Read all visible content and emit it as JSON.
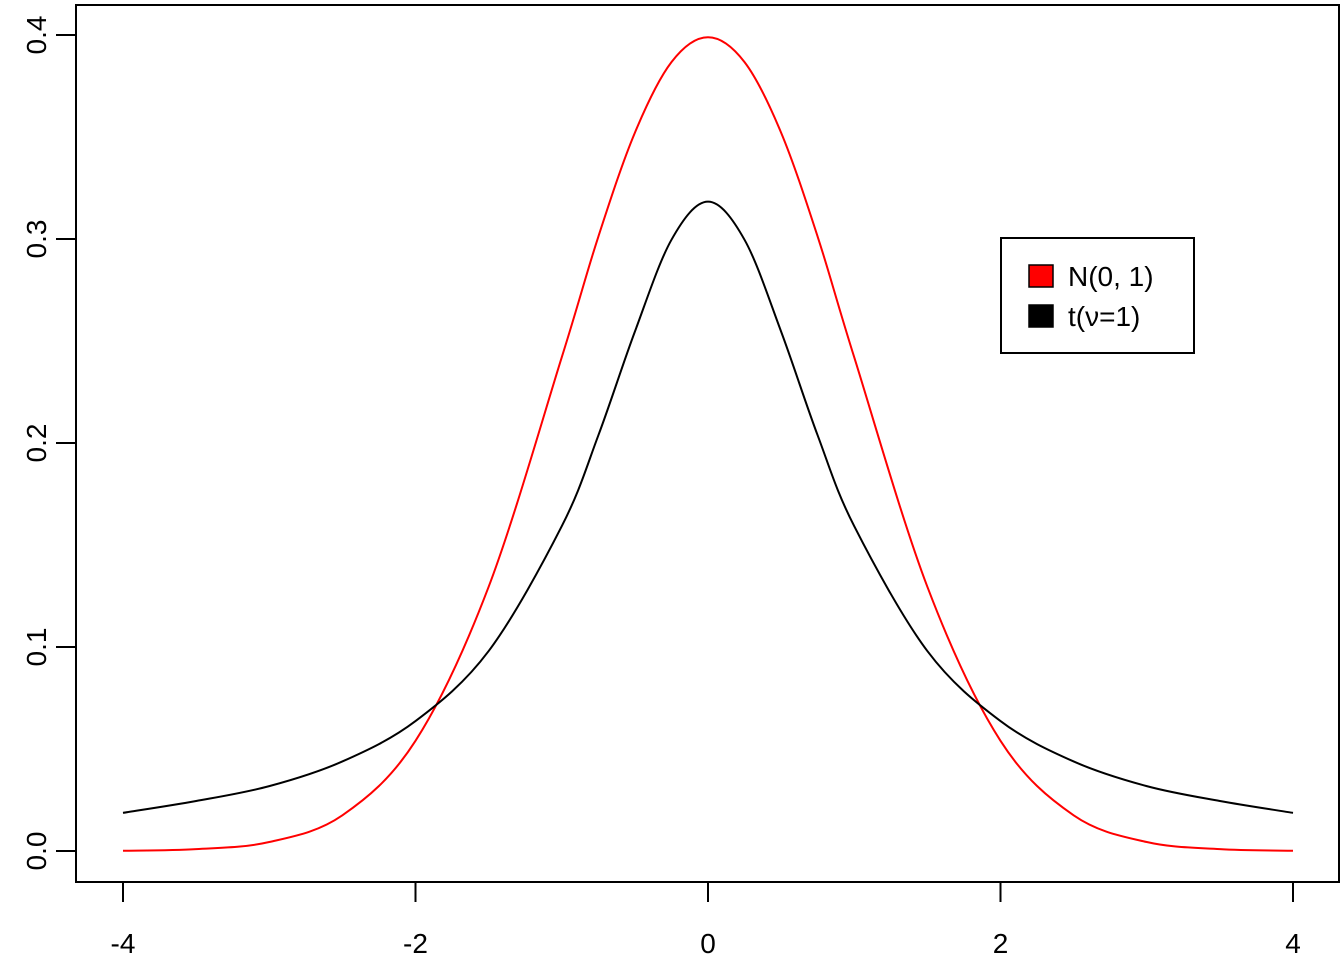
{
  "chart_data": {
    "type": "line",
    "title": "",
    "xlabel": "",
    "ylabel": "",
    "xlim": [
      -4,
      4
    ],
    "ylim": [
      0,
      0.4
    ],
    "x_ticks": [
      -4,
      -2,
      0,
      2,
      4
    ],
    "x_tick_labels": [
      "-4",
      "-2",
      "0",
      "2",
      "4"
    ],
    "y_ticks": [
      0,
      0.1,
      0.2,
      0.3,
      0.4
    ],
    "y_tick_labels": [
      "0.0",
      "0.1",
      "0.2",
      "0.3",
      "0.4"
    ],
    "grid": false,
    "legend_position": "top-right",
    "x": [
      -4,
      -3.5,
      -3,
      -2.5,
      -2,
      -1.5,
      -1,
      -0.75,
      -0.5,
      -0.25,
      0,
      0.25,
      0.5,
      0.75,
      1,
      1.5,
      2,
      2.5,
      3,
      3.5,
      4
    ],
    "series": [
      {
        "name": "N(0, 1)",
        "color": "#ff0000",
        "values": [
          0.0001,
          0.0009,
          0.0044,
          0.0175,
          0.054,
          0.1295,
          0.242,
          0.3011,
          0.3521,
          0.3867,
          0.3989,
          0.3867,
          0.3521,
          0.3011,
          0.242,
          0.1295,
          0.054,
          0.0175,
          0.0044,
          0.0009,
          0.0001
        ]
      },
      {
        "name": "t(ν=1)",
        "color": "#000000",
        "values": [
          0.0187,
          0.0245,
          0.0318,
          0.0439,
          0.0637,
          0.098,
          0.1592,
          0.2037,
          0.2546,
          0.2996,
          0.3183,
          0.2996,
          0.2546,
          0.2037,
          0.1592,
          0.098,
          0.0637,
          0.0439,
          0.0318,
          0.0245,
          0.0187
        ]
      }
    ]
  }
}
